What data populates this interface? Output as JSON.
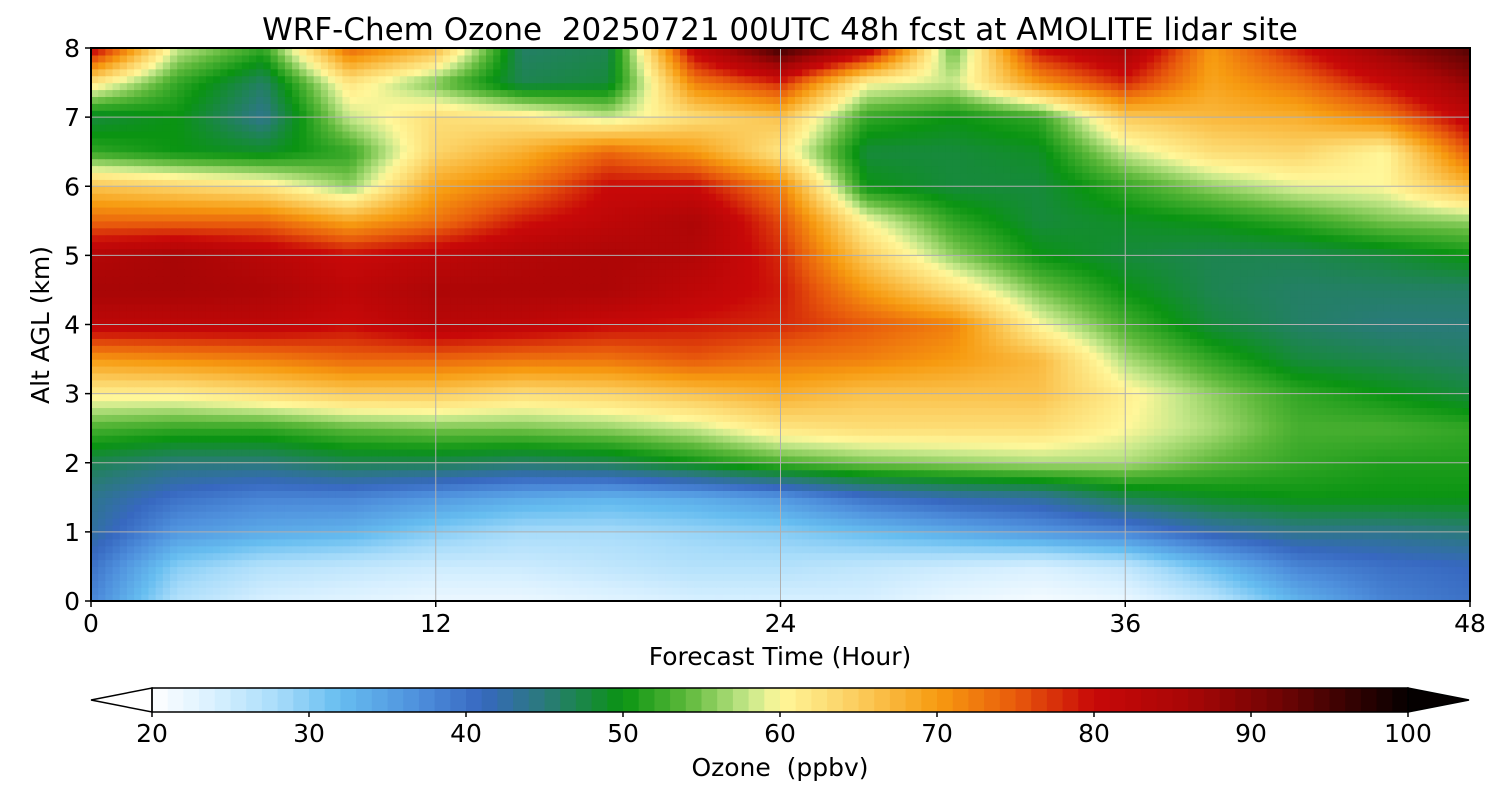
{
  "chart_data": {
    "type": "heatmap",
    "title": "WRF-Chem Ozone  20250721 00UTC 48h fcst at AMOLITE lidar site",
    "xlabel": "Forecast Time (Hour)",
    "ylabel": "Alt AGL (km)",
    "xlim": [
      0,
      48
    ],
    "ylim": [
      0,
      8
    ],
    "xticks": [
      0,
      12,
      24,
      36,
      48
    ],
    "yticks": [
      0,
      1,
      2,
      3,
      4,
      5,
      6,
      7,
      8
    ],
    "grid": true,
    "x": [
      0,
      3,
      6,
      9,
      12,
      15,
      18,
      21,
      24,
      27,
      30,
      33,
      36,
      39,
      42,
      45,
      48
    ],
    "y": [
      0,
      0.5,
      1,
      1.5,
      2,
      2.5,
      3,
      3.5,
      4,
      4.5,
      5,
      5.5,
      6,
      6.5,
      7,
      7.5,
      8
    ],
    "values": [
      [
        38,
        27,
        24,
        23,
        22,
        22,
        23,
        24,
        24,
        24,
        22,
        21,
        22,
        26,
        33,
        38,
        40
      ],
      [
        40,
        30,
        27,
        26,
        25,
        25,
        26,
        27,
        27,
        26,
        25,
        24,
        26,
        32,
        38,
        40,
        41
      ],
      [
        43,
        36,
        34,
        33,
        30,
        28,
        28,
        29,
        30,
        32,
        34,
        36,
        38,
        42,
        44,
        44,
        45
      ],
      [
        44,
        40,
        38,
        38,
        36,
        34,
        33,
        34,
        36,
        40,
        42,
        43,
        47,
        49,
        50,
        50,
        50
      ],
      [
        47,
        45,
        45,
        47,
        47,
        46,
        47,
        50,
        53,
        55,
        56,
        57,
        57,
        54,
        52,
        51,
        51
      ],
      [
        53,
        52,
        52,
        54,
        55,
        55,
        56,
        58,
        62,
        63,
        63,
        63,
        60,
        57,
        53,
        53,
        52
      ],
      [
        61,
        61,
        63,
        65,
        65,
        63,
        64,
        66,
        68,
        66,
        66,
        66,
        61,
        56,
        52,
        50,
        48
      ],
      [
        70,
        71,
        72,
        74,
        74,
        73,
        73,
        75,
        73,
        72,
        70,
        67,
        57,
        52,
        48,
        47,
        46
      ],
      [
        82,
        82,
        82,
        80,
        83,
        82,
        80,
        79,
        78,
        75,
        72,
        60,
        53,
        48,
        46,
        45,
        45
      ],
      [
        86,
        86,
        85,
        82,
        85,
        85,
        85,
        82,
        79,
        70,
        63,
        55,
        50,
        47,
        46,
        46,
        46
      ],
      [
        84,
        86,
        83,
        80,
        82,
        84,
        85,
        84,
        78,
        65,
        56,
        50,
        48,
        47,
        47,
        48,
        50
      ],
      [
        74,
        74,
        74,
        69,
        73,
        79,
        82,
        85,
        76,
        60,
        52,
        48,
        49,
        50,
        52,
        55,
        56
      ],
      [
        66,
        64,
        62,
        56,
        69,
        73,
        80,
        80,
        72,
        50,
        48,
        48,
        52,
        56,
        59,
        60,
        67
      ],
      [
        52,
        50,
        49,
        52,
        64,
        68,
        74,
        70,
        62,
        48,
        48,
        49,
        58,
        63,
        64,
        60,
        75
      ],
      [
        48,
        50,
        44,
        58,
        63,
        62,
        58,
        63,
        66,
        52,
        50,
        52,
        65,
        67,
        68,
        72,
        82
      ],
      [
        62,
        52,
        46,
        62,
        55,
        47,
        48,
        72,
        78,
        60,
        58,
        70,
        78,
        69,
        73,
        80,
        88
      ],
      [
        82,
        58,
        52,
        74,
        67,
        46,
        47,
        82,
        96,
        84,
        54,
        80,
        86,
        70,
        79,
        88,
        94
      ]
    ],
    "colorbar": {
      "label": "Ozone  (ppbv)",
      "min": 20,
      "max": 100,
      "ticks": [
        20,
        30,
        40,
        50,
        60,
        70,
        80,
        90,
        100
      ],
      "extend": "both",
      "colors": [
        {
          "v": 20,
          "c": "#ffffff"
        },
        {
          "v": 24,
          "c": "#d8f0ff"
        },
        {
          "v": 28,
          "c": "#a8dcfa"
        },
        {
          "v": 32,
          "c": "#66bdf0"
        },
        {
          "v": 37,
          "c": "#4e8fdc"
        },
        {
          "v": 41,
          "c": "#3768c0"
        },
        {
          "v": 45,
          "c": "#2a7a7a"
        },
        {
          "v": 50,
          "c": "#0a9412"
        },
        {
          "v": 54,
          "c": "#5cb83a"
        },
        {
          "v": 58,
          "c": "#c6e88a"
        },
        {
          "v": 60,
          "c": "#fff79a"
        },
        {
          "v": 64,
          "c": "#fcd56a"
        },
        {
          "v": 70,
          "c": "#f79b10"
        },
        {
          "v": 75,
          "c": "#e85a0c"
        },
        {
          "v": 80,
          "c": "#c80808"
        },
        {
          "v": 86,
          "c": "#a80606"
        },
        {
          "v": 92,
          "c": "#6e0404"
        },
        {
          "v": 100,
          "c": "#050000"
        }
      ]
    }
  }
}
